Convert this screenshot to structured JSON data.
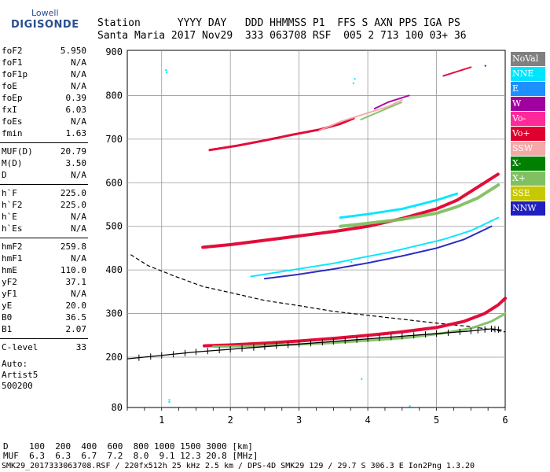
{
  "logo": {
    "line1": "Lowell",
    "line2": "DIGISONDE"
  },
  "header": {
    "row1": "Station      YYYY DAY   DDD HHMMSS P1  FFS S AXN PPS IGA PS",
    "row2": "Santa Maria 2017 Nov29  333 063708 RSF  005 2 713 100 03+ 36"
  },
  "params_group1": [
    {
      "key": "foF2",
      "value": "5.950"
    },
    {
      "key": "foF1",
      "value": "N/A"
    },
    {
      "key": "foF1p",
      "value": "N/A"
    },
    {
      "key": "foE",
      "value": "N/A"
    },
    {
      "key": "foEp",
      "value": "0.39"
    },
    {
      "key": "fxI",
      "value": "6.03"
    },
    {
      "key": "foEs",
      "value": "N/A"
    },
    {
      "key": "fmin",
      "value": "1.63"
    }
  ],
  "params_group2": [
    {
      "key": "MUF(D)",
      "value": "20.79"
    },
    {
      "key": "M(D)",
      "value": "3.50"
    },
    {
      "key": "D",
      "value": "N/A"
    }
  ],
  "params_group3": [
    {
      "key": "h`F",
      "value": "225.0"
    },
    {
      "key": "h`F2",
      "value": "225.0"
    },
    {
      "key": "h`E",
      "value": "N/A"
    },
    {
      "key": "h`Es",
      "value": "N/A"
    }
  ],
  "params_group4": [
    {
      "key": "hmF2",
      "value": "259.8"
    },
    {
      "key": "hmF1",
      "value": "N/A"
    },
    {
      "key": "hmE",
      "value": "110.0"
    },
    {
      "key": "yF2",
      "value": "37.1"
    },
    {
      "key": "yF1",
      "value": "N/A"
    },
    {
      "key": "yE",
      "value": "20.0"
    },
    {
      "key": "B0",
      "value": "36.5"
    },
    {
      "key": "B1",
      "value": "2.07"
    }
  ],
  "params_group5": [
    {
      "key": "C-level",
      "value": "33"
    }
  ],
  "auto": {
    "line1": "Auto:",
    "line2": "Artist5",
    "line3": "500200"
  },
  "legend": [
    {
      "label": "NoVal",
      "color": "#808080"
    },
    {
      "label": "NNE",
      "color": "#00e5ff"
    },
    {
      "label": "E",
      "color": "#1e90ff"
    },
    {
      "label": "W",
      "color": "#a000a0"
    },
    {
      "label": "Vo-",
      "color": "#ff2a9a"
    },
    {
      "label": "Vo+",
      "color": "#e00030"
    },
    {
      "label": "SSW",
      "color": "#f4a8a8"
    },
    {
      "label": "X-",
      "color": "#008000"
    },
    {
      "label": "X+",
      "color": "#80c060"
    },
    {
      "label": "SSE",
      "color": "#c8c800"
    },
    {
      "label": "NNW",
      "color": "#2020c0"
    }
  ],
  "bottom": {
    "d_row": "D    100  200  400  600  800 1000 1500 3000 [km]",
    "muf_row": "MUF  6.3  6.3  6.7  7.2  8.0  9.1 12.3 20.8 [MHz]",
    "footer": "SMK29_2017333063708.RSF / 220fx512h 25 kHz 2.5 km / DPS-4D SMK29 129 / 29.7 S 306.3 E Ion2Png 1.3.20"
  },
  "chart_data": {
    "type": "scatter",
    "xlim": [
      0.5,
      6.0
    ],
    "x_ticks": [
      1,
      2,
      3,
      4,
      5,
      6
    ],
    "x_tick_labels": [
      "1",
      "2",
      "3",
      "4",
      "5",
      "6"
    ],
    "y_ticks": [
      80,
      200,
      300,
      400,
      500,
      600,
      700,
      800,
      900
    ],
    "y_tick_labels": [
      "80",
      "200",
      "300",
      "400",
      "500",
      "600",
      "700",
      "800",
      "900"
    ],
    "y_axis_note": "piecewise virtual height scale: 80 at bottom, then 200 to 900 linear",
    "grid": true,
    "traces": [
      {
        "name": "Vo+",
        "color": "#e00030",
        "width": 4,
        "points": [
          [
            1.62,
            226
          ],
          [
            2.0,
            228
          ],
          [
            2.5,
            232
          ],
          [
            3.0,
            237
          ],
          [
            3.5,
            243
          ],
          [
            4.0,
            250
          ],
          [
            4.5,
            258
          ],
          [
            5.0,
            268
          ],
          [
            5.4,
            282
          ],
          [
            5.7,
            300
          ],
          [
            5.9,
            320
          ],
          [
            6.0,
            335
          ]
        ]
      },
      {
        "name": "X+",
        "color": "#80c060",
        "width": 3,
        "points": [
          [
            1.75,
            224
          ],
          [
            2.2,
            225
          ],
          [
            2.8,
            228
          ],
          [
            3.4,
            232
          ],
          [
            4.0,
            238
          ],
          [
            4.6,
            245
          ],
          [
            5.1,
            255
          ],
          [
            5.5,
            266
          ],
          [
            5.8,
            282
          ],
          [
            6.0,
            300
          ]
        ]
      },
      {
        "name": "Vo+",
        "color": "#e00030",
        "width": 4,
        "points": [
          [
            1.6,
            452
          ],
          [
            2.0,
            458
          ],
          [
            2.5,
            468
          ],
          [
            3.0,
            478
          ],
          [
            3.5,
            488
          ],
          [
            4.0,
            500
          ],
          [
            4.5,
            518
          ],
          [
            5.0,
            540
          ],
          [
            5.3,
            560
          ],
          [
            5.6,
            590
          ],
          [
            5.9,
            620
          ]
        ]
      },
      {
        "name": "X+",
        "color": "#80c060",
        "width": 4,
        "points": [
          [
            3.6,
            500
          ],
          [
            4.0,
            507
          ],
          [
            4.5,
            516
          ],
          [
            5.0,
            530
          ],
          [
            5.3,
            545
          ],
          [
            5.6,
            565
          ],
          [
            5.9,
            595
          ]
        ]
      },
      {
        "name": "NNE",
        "color": "#00e5ff",
        "width": 3,
        "points": [
          [
            3.6,
            520
          ],
          [
            4.0,
            528
          ],
          [
            4.5,
            540
          ],
          [
            5.0,
            560
          ],
          [
            5.3,
            575
          ]
        ]
      },
      {
        "name": "NNE",
        "color": "#00e5ff",
        "width": 2,
        "points": [
          [
            2.3,
            385
          ],
          [
            2.7,
            395
          ],
          [
            3.1,
            405
          ],
          [
            3.5,
            415
          ],
          [
            3.9,
            428
          ],
          [
            4.3,
            440
          ],
          [
            4.7,
            455
          ],
          [
            5.1,
            470
          ],
          [
            5.5,
            490
          ],
          [
            5.9,
            520
          ]
        ]
      },
      {
        "name": "NNW",
        "color": "#2020c0",
        "width": 2,
        "points": [
          [
            2.5,
            380
          ],
          [
            3.0,
            390
          ],
          [
            3.5,
            402
          ],
          [
            4.0,
            416
          ],
          [
            4.5,
            432
          ],
          [
            5.0,
            450
          ],
          [
            5.4,
            470
          ],
          [
            5.8,
            500
          ]
        ]
      },
      {
        "name": "Vo+",
        "color": "#e00030",
        "width": 3,
        "points": [
          [
            1.7,
            675
          ],
          [
            2.1,
            685
          ],
          [
            2.5,
            697
          ],
          [
            2.9,
            710
          ],
          [
            3.3,
            722
          ],
          [
            3.6,
            735
          ],
          [
            3.8,
            748
          ]
        ]
      },
      {
        "name": "SSW",
        "color": "#f4a8a8",
        "width": 2,
        "points": [
          [
            3.3,
            720
          ],
          [
            3.6,
            740
          ],
          [
            4.0,
            760
          ],
          [
            4.3,
            775
          ],
          [
            4.5,
            790
          ]
        ]
      },
      {
        "name": "X+",
        "color": "#80c060",
        "width": 2,
        "points": [
          [
            3.9,
            745
          ],
          [
            4.2,
            765
          ],
          [
            4.5,
            785
          ]
        ]
      },
      {
        "name": "W",
        "color": "#a000a0",
        "width": 2,
        "points": [
          [
            4.1,
            770
          ],
          [
            4.3,
            785
          ],
          [
            4.6,
            800
          ]
        ]
      },
      {
        "name": "Vo+",
        "color": "#e00030",
        "width": 2,
        "points": [
          [
            5.1,
            845
          ],
          [
            5.3,
            855
          ],
          [
            5.5,
            865
          ]
        ]
      }
    ],
    "profile_curve": {
      "color": "#000000",
      "style": "solid",
      "points": [
        [
          0.5,
          196
        ],
        [
          1.0,
          204
        ],
        [
          1.5,
          212
        ],
        [
          2.0,
          218
        ],
        [
          2.5,
          224
        ],
        [
          3.0,
          230
        ],
        [
          3.5,
          236
        ],
        [
          4.0,
          242
        ],
        [
          4.5,
          248
        ],
        [
          5.0,
          254
        ],
        [
          5.5,
          260
        ],
        [
          5.8,
          265
        ],
        [
          5.95,
          262
        ]
      ]
    },
    "dashed_curve": {
      "color": "#000000",
      "style": "dashed",
      "points": [
        [
          0.55,
          435
        ],
        [
          0.8,
          410
        ],
        [
          1.2,
          385
        ],
        [
          1.6,
          362
        ],
        [
          2.0,
          348
        ],
        [
          2.5,
          330
        ],
        [
          3.0,
          318
        ],
        [
          3.5,
          305
        ],
        [
          4.0,
          296
        ],
        [
          4.5,
          287
        ],
        [
          5.0,
          278
        ],
        [
          5.5,
          270
        ],
        [
          5.8,
          263
        ],
        [
          6.0,
          258
        ]
      ]
    },
    "sparse_points": [
      {
        "x": 1.06,
        "y": 855,
        "color": "#00e5ff"
      },
      {
        "x": 1.05,
        "y": 860,
        "color": "#00e5ff"
      },
      {
        "x": 3.8,
        "y": 840,
        "color": "#00e5ff"
      },
      {
        "x": 3.78,
        "y": 830,
        "color": "#00e5ff"
      },
      {
        "x": 3.72,
        "y": 500,
        "color": "#00e5ff"
      },
      {
        "x": 3.75,
        "y": 420,
        "color": "#00e5ff"
      },
      {
        "x": 1.1,
        "y": 100,
        "color": "#00e5ff"
      },
      {
        "x": 1.1,
        "y": 95,
        "color": "#00e5ff"
      },
      {
        "x": 3.9,
        "y": 150,
        "color": "#00e5ff"
      },
      {
        "x": 4.6,
        "y": 85,
        "color": "#00e5ff"
      },
      {
        "x": 5.7,
        "y": 870,
        "color": "#2020c0"
      }
    ]
  }
}
